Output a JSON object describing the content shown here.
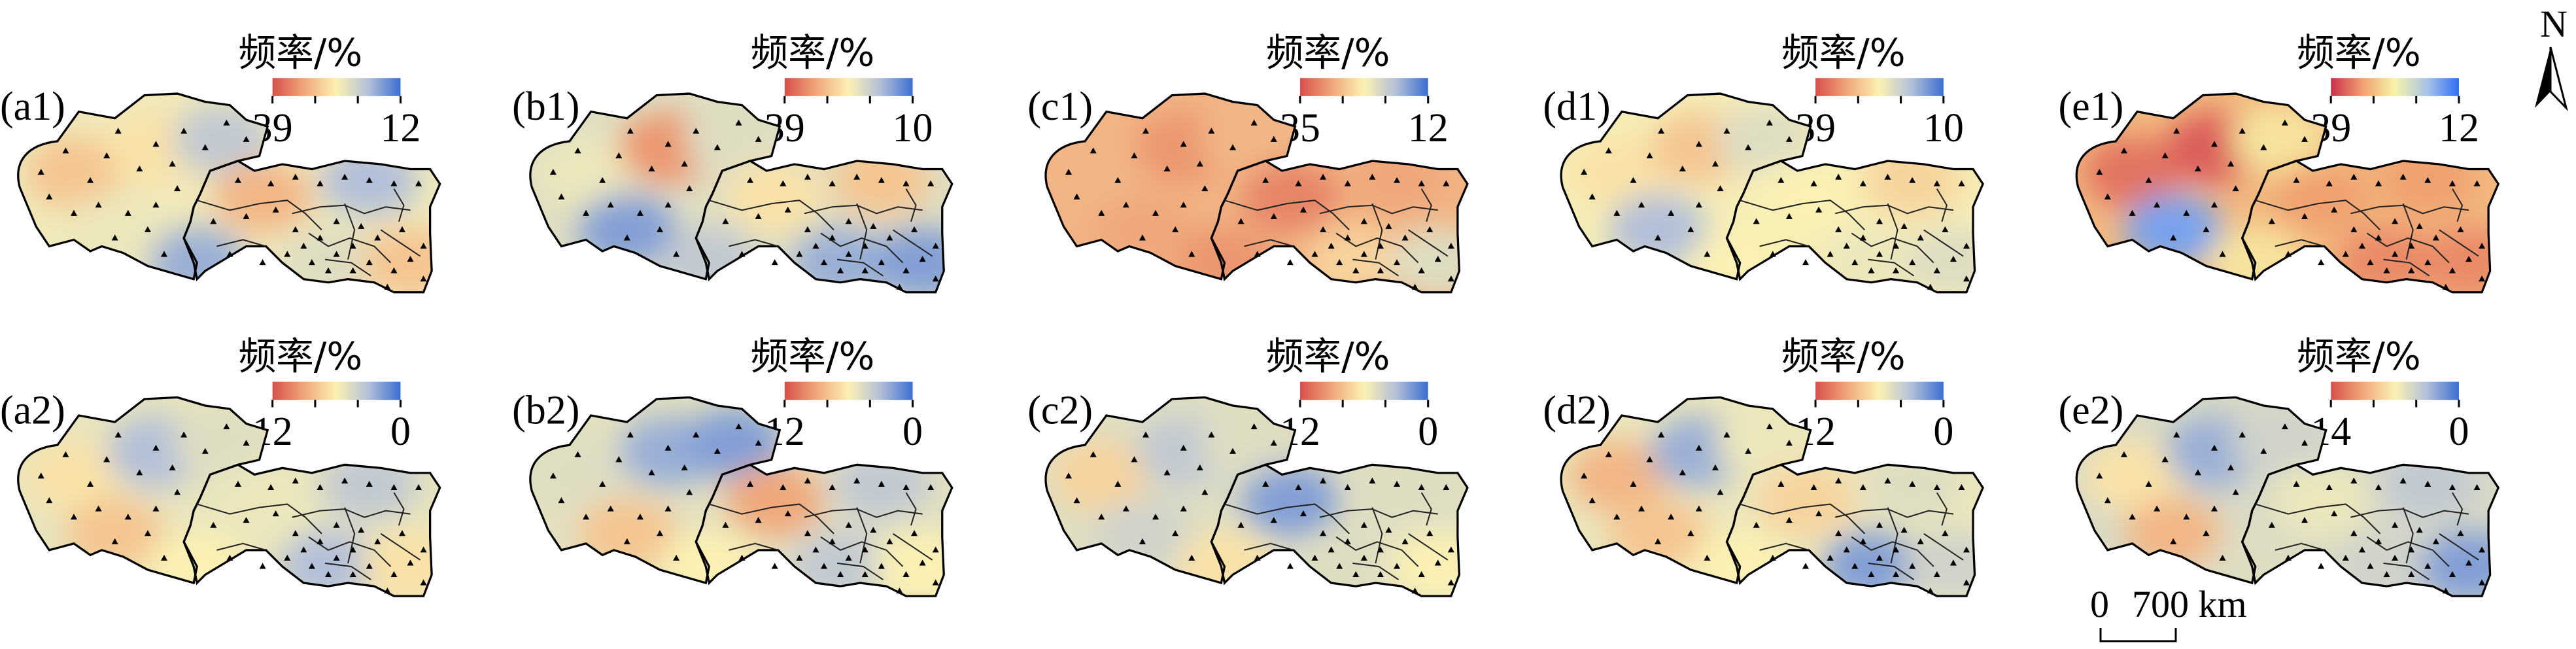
{
  "legend_title": "频率/%",
  "ramps": {
    "A": [
      "#d6504a",
      "#f0a77a",
      "#fbf1b4",
      "#b2bfd8",
      "#3c6fd0"
    ],
    "B": [
      "#cc2f4c",
      "#f0a16f",
      "#f7f3a8",
      "#a8c4e6",
      "#2f6ff5"
    ]
  },
  "panels": [
    {
      "id": "a1",
      "label": "(a1)",
      "legend_max": "39",
      "legend_min": "12",
      "ramp": "A",
      "field": [
        [
          0.35,
          0.45,
          0.7
        ],
        [
          0.55,
          0.3,
          0.75
        ],
        [
          0.8,
          0.6,
          0.35
        ]
      ]
    },
    {
      "id": "b1",
      "label": "(b1)",
      "legend_max": "39",
      "legend_min": "10",
      "ramp": "A",
      "field": [
        [
          0.55,
          0.2,
          0.6
        ],
        [
          0.85,
          0.45,
          0.35
        ],
        [
          0.7,
          0.8,
          0.85
        ]
      ]
    },
    {
      "id": "c1",
      "label": "(c1)",
      "legend_max": "35",
      "legend_min": "12",
      "ramp": "A",
      "field": [
        [
          0.3,
          0.2,
          0.3
        ],
        [
          0.25,
          0.15,
          0.25
        ],
        [
          0.2,
          0.4,
          0.6
        ]
      ]
    },
    {
      "id": "d1",
      "label": "(d1)",
      "legend_max": "39",
      "legend_min": "10",
      "ramp": "A",
      "field": [
        [
          0.45,
          0.35,
          0.6
        ],
        [
          0.75,
          0.5,
          0.4
        ],
        [
          0.5,
          0.55,
          0.6
        ]
      ]
    },
    {
      "id": "e1",
      "label": "(e1)",
      "legend_max": "39",
      "legend_min": "12",
      "ramp": "B",
      "field": [
        [
          0.15,
          0.1,
          0.45
        ],
        [
          0.85,
          0.25,
          0.25
        ],
        [
          0.45,
          0.2,
          0.2
        ]
      ]
    },
    {
      "id": "a2",
      "label": "(a2)",
      "legend_max": "12",
      "legend_min": "0",
      "ramp": "A",
      "field": [
        [
          0.45,
          0.75,
          0.6
        ],
        [
          0.35,
          0.55,
          0.7
        ],
        [
          0.5,
          0.75,
          0.45
        ]
      ]
    },
    {
      "id": "b2",
      "label": "(b2)",
      "legend_max": "12",
      "legend_min": "0",
      "ramp": "A",
      "field": [
        [
          0.6,
          0.8,
          0.85
        ],
        [
          0.35,
          0.25,
          0.7
        ],
        [
          0.5,
          0.7,
          0.5
        ]
      ]
    },
    {
      "id": "c2",
      "label": "(c2)",
      "legend_max": "12",
      "legend_min": "0",
      "ramp": "A",
      "field": [
        [
          0.4,
          0.7,
          0.6
        ],
        [
          0.65,
          0.85,
          0.6
        ],
        [
          0.45,
          0.6,
          0.5
        ]
      ]
    },
    {
      "id": "d2",
      "label": "(d2)",
      "legend_max": "12",
      "legend_min": "0",
      "ramp": "A",
      "field": [
        [
          0.3,
          0.8,
          0.55
        ],
        [
          0.35,
          0.4,
          0.6
        ],
        [
          0.5,
          0.85,
          0.65
        ]
      ]
    },
    {
      "id": "e2",
      "label": "(e2)",
      "legend_max": "14",
      "legend_min": "0",
      "ramp": "A",
      "field": [
        [
          0.45,
          0.8,
          0.65
        ],
        [
          0.3,
          0.55,
          0.7
        ],
        [
          0.6,
          0.65,
          0.85
        ]
      ]
    }
  ],
  "scale_bar": {
    "label_zero": "0",
    "label_distance": "700 km"
  },
  "north_arrow": {
    "label": "N"
  }
}
